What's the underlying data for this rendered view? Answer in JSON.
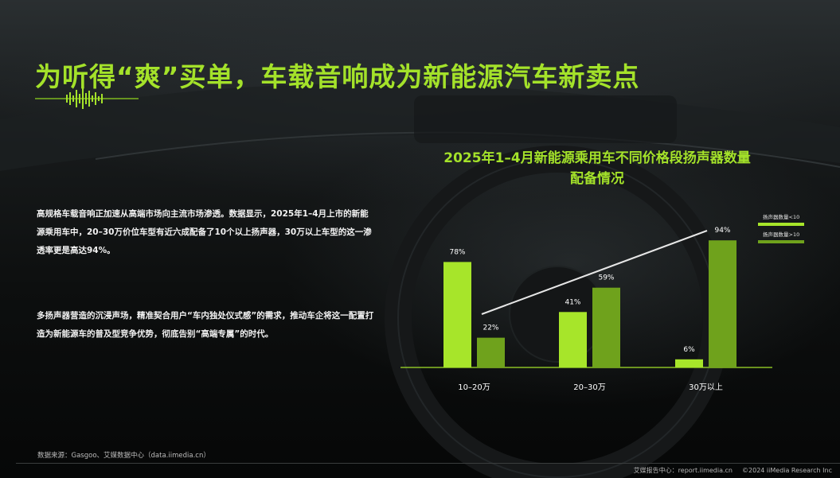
{
  "title": "为听得“爽”买单，车载音响成为新能源汽车新卖点",
  "body": {
    "p1": "高规格车载音响正加速从高端市场向主流市场渗透。数据显示，2025年1–4月上市的新能源乘用车中，20–30万价位车型有近六成配备了10个以上扬声器，30万以上车型的这一渗透率更是高达94%。",
    "p2": "多扬声器营造的沉浸声场，精准契合用户“车内独处仪式感”的需求，推动车企将这一配置打造为新能源车的普及型竞争优势，彻底告别“高端专属”的时代。"
  },
  "chart_data": {
    "type": "bar",
    "title_line1": "2025年1–4月新能源乘用车不同价格段扬声器数量",
    "title_line2": "配备情况",
    "categories": [
      "10–20万",
      "20–30万",
      "30万以上"
    ],
    "series": [
      {
        "name": "扬声器数量<10",
        "values": [
          78,
          41,
          6
        ],
        "color": "#a7e52a"
      },
      {
        "name": "扬声器数量>10",
        "values": [
          22,
          59,
          94
        ],
        "color": "#6fa21c"
      }
    ],
    "value_suffix": "%",
    "ylim": [
      0,
      100
    ],
    "legend_position": "top-right",
    "trend_line": "white"
  },
  "source": "数据来源：Gasgoo、艾媒数据中心（data.iimedia.cn）",
  "footer": {
    "brand": "艾媒报告中心：report.iimedia.cn",
    "copyright": "©2024 iiMedia Research Inc"
  },
  "colors": {
    "accent": "#a4e22a",
    "bar_light": "#a7e52a",
    "bar_dark": "#6fa21c"
  }
}
